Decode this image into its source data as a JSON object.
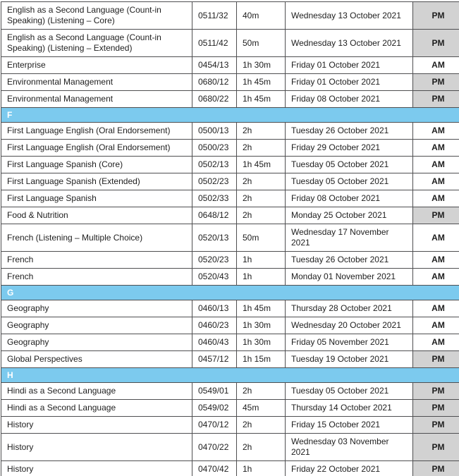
{
  "table": {
    "colors": {
      "section_header_bg": "#7ccaee",
      "section_header_text": "#ffffff",
      "pm_cell_bg": "#d2d2d2",
      "am_cell_bg": "#ffffff",
      "border": "#4f4f51",
      "text": "#1e1e1e"
    },
    "columns": [
      "subject",
      "code",
      "duration",
      "date",
      "session"
    ],
    "rows": [
      {
        "type": "exam",
        "subject": "English as a Second Language (Count-in Speaking) (Listening – Core)",
        "code": "0511/32",
        "duration": "40m",
        "date": "Wednesday 13 October 2021",
        "session": "PM"
      },
      {
        "type": "exam",
        "subject": "English as a Second Language (Count-in Speaking) (Listening – Extended)",
        "code": "0511/42",
        "duration": "50m",
        "date": "Wednesday 13 October 2021",
        "session": "PM"
      },
      {
        "type": "exam",
        "subject": "Enterprise",
        "code": "0454/13",
        "duration": "1h 30m",
        "date": "Friday 01 October 2021",
        "session": "AM"
      },
      {
        "type": "exam",
        "subject": "Environmental Management",
        "code": "0680/12",
        "duration": "1h 45m",
        "date": "Friday 01 October 2021",
        "session": "PM"
      },
      {
        "type": "exam",
        "subject": "Environmental Management",
        "code": "0680/22",
        "duration": "1h 45m",
        "date": "Friday 08 October 2021",
        "session": "PM"
      },
      {
        "type": "section",
        "letter": "F"
      },
      {
        "type": "exam",
        "subject": "First Language English (Oral Endorsement)",
        "code": "0500/13",
        "duration": "2h",
        "date": "Tuesday 26 October 2021",
        "session": "AM"
      },
      {
        "type": "exam",
        "subject": "First Language English (Oral Endorsement)",
        "code": "0500/23",
        "duration": "2h",
        "date": "Friday 29 October 2021",
        "session": "AM"
      },
      {
        "type": "exam",
        "subject": "First Language Spanish (Core)",
        "code": "0502/13",
        "duration": "1h 45m",
        "date": "Tuesday 05 October 2021",
        "session": "AM"
      },
      {
        "type": "exam",
        "subject": "First Language Spanish (Extended)",
        "code": "0502/23",
        "duration": "2h",
        "date": "Tuesday 05 October 2021",
        "session": "AM"
      },
      {
        "type": "exam",
        "subject": "First Language Spanish",
        "code": "0502/33",
        "duration": "2h",
        "date": "Friday 08 October 2021",
        "session": "AM"
      },
      {
        "type": "exam",
        "subject": "Food & Nutrition",
        "code": "0648/12",
        "duration": "2h",
        "date": "Monday 25 October 2021",
        "session": "PM"
      },
      {
        "type": "exam",
        "subject": "French (Listening – Multiple Choice)",
        "code": "0520/13",
        "duration": "50m",
        "date": "Wednesday 17 November 2021",
        "session": "AM"
      },
      {
        "type": "exam",
        "subject": "French",
        "code": "0520/23",
        "duration": "1h",
        "date": "Tuesday 26 October 2021",
        "session": "AM"
      },
      {
        "type": "exam",
        "subject": "French",
        "code": "0520/43",
        "duration": "1h",
        "date": "Monday 01 November 2021",
        "session": "AM"
      },
      {
        "type": "section",
        "letter": "G"
      },
      {
        "type": "exam",
        "subject": "Geography",
        "code": "0460/13",
        "duration": "1h 45m",
        "date": "Thursday 28 October 2021",
        "session": "AM"
      },
      {
        "type": "exam",
        "subject": "Geography",
        "code": "0460/23",
        "duration": "1h 30m",
        "date": "Wednesday 20 October 2021",
        "session": "AM"
      },
      {
        "type": "exam",
        "subject": "Geography",
        "code": "0460/43",
        "duration": "1h 30m",
        "date": "Friday 05 November 2021",
        "session": "AM"
      },
      {
        "type": "exam",
        "subject": "Global Perspectives",
        "code": "0457/12",
        "duration": "1h 15m",
        "date": "Tuesday 19 October 2021",
        "session": "PM"
      },
      {
        "type": "section",
        "letter": "H"
      },
      {
        "type": "exam",
        "subject": "Hindi as a Second Language",
        "code": "0549/01",
        "duration": "2h",
        "date": "Tuesday 05 October 2021",
        "session": "PM"
      },
      {
        "type": "exam",
        "subject": "Hindi as a Second Language",
        "code": "0549/02",
        "duration": "45m",
        "date": "Thursday 14 October 2021",
        "session": "PM"
      },
      {
        "type": "exam",
        "subject": "History",
        "code": "0470/12",
        "duration": "2h",
        "date": "Friday 15 October 2021",
        "session": "PM"
      },
      {
        "type": "exam",
        "subject": "History",
        "code": "0470/22",
        "duration": "2h",
        "date": "Wednesday 03 November 2021",
        "session": "PM"
      },
      {
        "type": "exam",
        "subject": "History",
        "code": "0470/42",
        "duration": "1h",
        "date": "Friday 22 October 2021",
        "session": "PM"
      }
    ]
  }
}
